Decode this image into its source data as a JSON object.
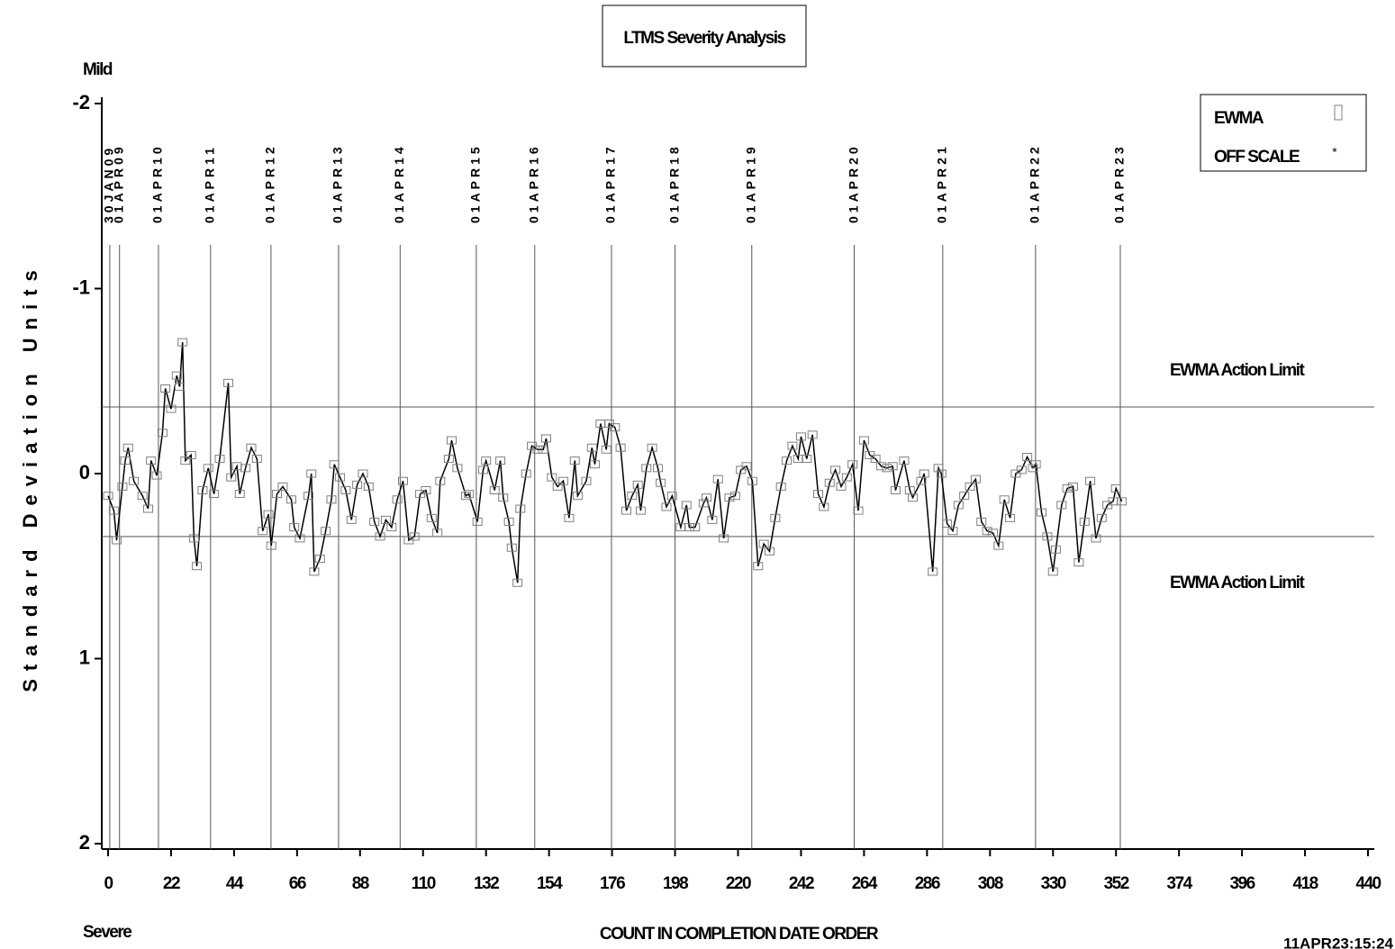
{
  "chart_data": {
    "type": "line",
    "title": "LTMS Severity Analysis",
    "top_label": "Mild",
    "bottom_label": "Severe",
    "ylabel": "Standard Deviation Units",
    "xlabel": "COUNT IN COMPLETION DATE ORDER",
    "timestamp": "11APR23:15:24",
    "off_scale_label": "OFF SCALE",
    "xlim": [
      0,
      440
    ],
    "xticks": [
      0,
      22,
      44,
      66,
      88,
      110,
      132,
      154,
      176,
      198,
      220,
      242,
      264,
      286,
      308,
      330,
      352,
      374,
      396,
      418,
      440
    ],
    "ylim": [
      -2,
      2
    ],
    "y_inverted": true,
    "yticks": [
      -2,
      -1,
      0,
      1,
      2
    ],
    "reference_lines": [
      {
        "value": -0.36,
        "label": "EWMA Action Limit"
      },
      {
        "value": 0.34,
        "label": "EWMA Action Limit"
      }
    ],
    "date_lines": [
      {
        "x": 0.6,
        "label": "30JAN09"
      },
      {
        "x": 4,
        "label": "01APR09"
      },
      {
        "x": 17.6,
        "label": "01APR10"
      },
      {
        "x": 35.8,
        "label": "01APR11"
      },
      {
        "x": 56.9,
        "label": "01APR12"
      },
      {
        "x": 80.5,
        "label": "01APR13"
      },
      {
        "x": 102,
        "label": "01APR14"
      },
      {
        "x": 128.6,
        "label": "01APR15"
      },
      {
        "x": 149,
        "label": "01APR16"
      },
      {
        "x": 175.8,
        "label": "01APR17"
      },
      {
        "x": 198,
        "label": "01APR18"
      },
      {
        "x": 224.8,
        "label": "01APR19"
      },
      {
        "x": 260.6,
        "label": "01APR20"
      },
      {
        "x": 291.5,
        "label": "01APR21"
      },
      {
        "x": 323.9,
        "label": "01APR22"
      },
      {
        "x": 353.5,
        "label": "01APR23"
      }
    ],
    "x": [
      0,
      2,
      3,
      5,
      6,
      7,
      9,
      12,
      14,
      15,
      17,
      19,
      20,
      22,
      24,
      25,
      26,
      27,
      29,
      30,
      31,
      33,
      35,
      37,
      39,
      42,
      43,
      45,
      46,
      48,
      50,
      52,
      54,
      56,
      57,
      59,
      61,
      64,
      65,
      67,
      70,
      71,
      72,
      74,
      76,
      78,
      79,
      81,
      83,
      85,
      87,
      89,
      91,
      93,
      95,
      97,
      99,
      101,
      103,
      105,
      107,
      109,
      111,
      113,
      115,
      116,
      119,
      120,
      122,
      125,
      126,
      129,
      131,
      132,
      135,
      137,
      138,
      140,
      141,
      143,
      144,
      146,
      148,
      150,
      152,
      153,
      155,
      157,
      159,
      161,
      163,
      164,
      167,
      169,
      170,
      172,
      174,
      175,
      177,
      179,
      181,
      183,
      185,
      186,
      188,
      190,
      192,
      193,
      195,
      197,
      200,
      202,
      203,
      205,
      208,
      209,
      211,
      213,
      215,
      217,
      219,
      221,
      223,
      225,
      227,
      229,
      231,
      233,
      235,
      237,
      239,
      241,
      242,
      244,
      246,
      248,
      250,
      252,
      254,
      256,
      258,
      260,
      262,
      264,
      266,
      268,
      270,
      272,
      274,
      275,
      278,
      280,
      281,
      284,
      285,
      288,
      290,
      291,
      293,
      295,
      297,
      299,
      301,
      303,
      305,
      307,
      309,
      311,
      313,
      315,
      317,
      319,
      321,
      323,
      324,
      326,
      328,
      330,
      331,
      333,
      335,
      337,
      339,
      341,
      343,
      345,
      347,
      349,
      351,
      352,
      354
    ],
    "series": [
      {
        "name": "EWMA",
        "color": "#000000",
        "marker_color": "#7f7f7f",
        "values": [
          0.12,
          0.2,
          0.36,
          0.07,
          -0.07,
          -0.14,
          0.04,
          0.12,
          0.19,
          -0.07,
          0.01,
          -0.22,
          -0.46,
          -0.35,
          -0.53,
          -0.47,
          -0.71,
          -0.07,
          -0.1,
          0.35,
          0.5,
          0.09,
          -0.03,
          0.11,
          -0.08,
          -0.49,
          0.02,
          -0.04,
          0.11,
          -0.03,
          -0.14,
          -0.08,
          0.31,
          0.22,
          0.39,
          0.11,
          0.07,
          0.14,
          0.29,
          0.35,
          0.12,
          0,
          0.53,
          0.46,
          0.31,
          0.14,
          -0.05,
          0.02,
          0.09,
          0.25,
          0.06,
          0,
          0.07,
          0.26,
          0.34,
          0.25,
          0.29,
          0.14,
          0.04,
          0.36,
          0.34,
          0.11,
          0.09,
          0.24,
          0.32,
          0.04,
          -0.08,
          -0.18,
          -0.03,
          0.12,
          0.11,
          0.26,
          -0.02,
          -0.07,
          0.09,
          -0.07,
          0.13,
          0.26,
          0.4,
          0.59,
          0.19,
          0,
          -0.15,
          -0.13,
          -0.13,
          -0.19,
          0.02,
          0.07,
          0.04,
          0.24,
          -0.07,
          0.12,
          0.04,
          -0.14,
          -0.05,
          -0.27,
          -0.13,
          -0.27,
          -0.25,
          -0.14,
          0.2,
          0.12,
          0.06,
          0.2,
          -0.03,
          -0.14,
          -0.03,
          0.05,
          0.18,
          0.12,
          0.29,
          0.17,
          0.29,
          0.29,
          0.16,
          0.13,
          0.25,
          0.03,
          0.35,
          0.13,
          0.12,
          -0.02,
          -0.04,
          0.04,
          0.5,
          0.38,
          0.42,
          0.24,
          0.07,
          -0.07,
          -0.15,
          -0.08,
          -0.2,
          -0.08,
          -0.21,
          0.11,
          0.18,
          0.05,
          -0.02,
          0.07,
          0.02,
          -0.05,
          0.2,
          -0.18,
          -0.1,
          -0.08,
          -0.04,
          -0.03,
          -0.04,
          0.09,
          -0.07,
          0.09,
          0.13,
          0.04,
          0,
          0.53,
          -0.03,
          0,
          0.27,
          0.31,
          0.17,
          0.12,
          0.07,
          0.03,
          0.26,
          0.31,
          0.32,
          0.39,
          0.14,
          0.24,
          0,
          -0.02,
          -0.09,
          -0.03,
          -0.05,
          0.21,
          0.34,
          0.53,
          0.41,
          0.17,
          0.08,
          0.07,
          0.48,
          0.26,
          0.04,
          0.35,
          0.24,
          0.17,
          0.15,
          0.08,
          0.15
        ]
      }
    ]
  }
}
